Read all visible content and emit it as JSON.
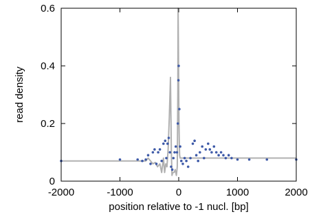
{
  "chart_data": {
    "type": "scatter",
    "title": "",
    "xlabel": "position relative to -1 nucl. [bp]",
    "ylabel": "read density",
    "xlim": [
      -2000,
      2000
    ],
    "ylim": [
      0,
      0.6
    ],
    "x_ticks": [
      -2000,
      -1000,
      0,
      1000,
      2000
    ],
    "x_tick_labels": [
      "-2000",
      "-1000",
      "0",
      "1000",
      "2000"
    ],
    "y_ticks": [
      0,
      0.2,
      0.4,
      0.6
    ],
    "y_tick_labels": [
      "0",
      "0.2",
      "0.4",
      "0.6"
    ],
    "grid": false,
    "legend": "none",
    "series": [
      {
        "kind": "line",
        "color": "#b0b0b0",
        "x": [
          -2000,
          -1000,
          -700,
          -600,
          -560,
          -520,
          -480,
          -440,
          -400,
          -360,
          -320,
          -290,
          -260,
          -240,
          -220,
          -200,
          -180,
          -160,
          -140,
          -125,
          -115,
          -100,
          -80,
          -60,
          -40,
          -25,
          -15,
          -10,
          -5,
          0,
          5,
          10,
          15,
          25,
          40,
          70,
          120,
          200,
          400,
          1000,
          2000
        ],
        "y": [
          0.07,
          0.07,
          0.07,
          0.07,
          0.07,
          0.08,
          0.07,
          0.06,
          0.065,
          0.05,
          0.06,
          0.03,
          0.08,
          0.03,
          0.06,
          0.05,
          0.11,
          0.22,
          0.36,
          0.1,
          0.02,
          0.03,
          0.03,
          0.04,
          0.02,
          0.05,
          0.3,
          0.6,
          0.45,
          0.3,
          0.2,
          0.13,
          0.09,
          0.08,
          0.08,
          0.08,
          0.08,
          0.08,
          0.08,
          0.08,
          0.08
        ]
      },
      {
        "kind": "points",
        "color": "#3e5aa8",
        "x": [
          -2000,
          -1000,
          -700,
          -620,
          -560,
          -520,
          -480,
          -440,
          -410,
          -380,
          -350,
          -320,
          -290,
          -260,
          -230,
          -210,
          -190,
          -170,
          -150,
          -130,
          -110,
          -90,
          -70,
          -50,
          -30,
          -15,
          -5,
          0,
          10,
          25,
          45,
          70,
          100,
          130,
          160,
          200,
          240,
          270,
          300,
          330,
          360,
          400,
          430,
          460,
          500,
          530,
          560,
          600,
          640,
          680,
          720,
          760,
          800,
          850,
          900,
          1000,
          1200,
          1500,
          2000
        ],
        "y": [
          0.07,
          0.075,
          0.075,
          0.07,
          0.075,
          0.09,
          0.06,
          0.1,
          0.11,
          0.06,
          0.1,
          0.11,
          0.07,
          0.13,
          0.14,
          0.08,
          0.13,
          0.15,
          0.1,
          0.05,
          0.04,
          0.08,
          0.1,
          0.12,
          0.1,
          0.2,
          0.35,
          0.4,
          0.25,
          0.12,
          0.07,
          0.06,
          0.08,
          0.07,
          0.05,
          0.08,
          0.13,
          0.14,
          0.09,
          0.07,
          0.1,
          0.12,
          0.08,
          0.11,
          0.13,
          0.11,
          0.1,
          0.12,
          0.1,
          0.09,
          0.1,
          0.09,
          0.08,
          0.09,
          0.08,
          0.075,
          0.075,
          0.075,
          0.075
        ]
      }
    ]
  }
}
